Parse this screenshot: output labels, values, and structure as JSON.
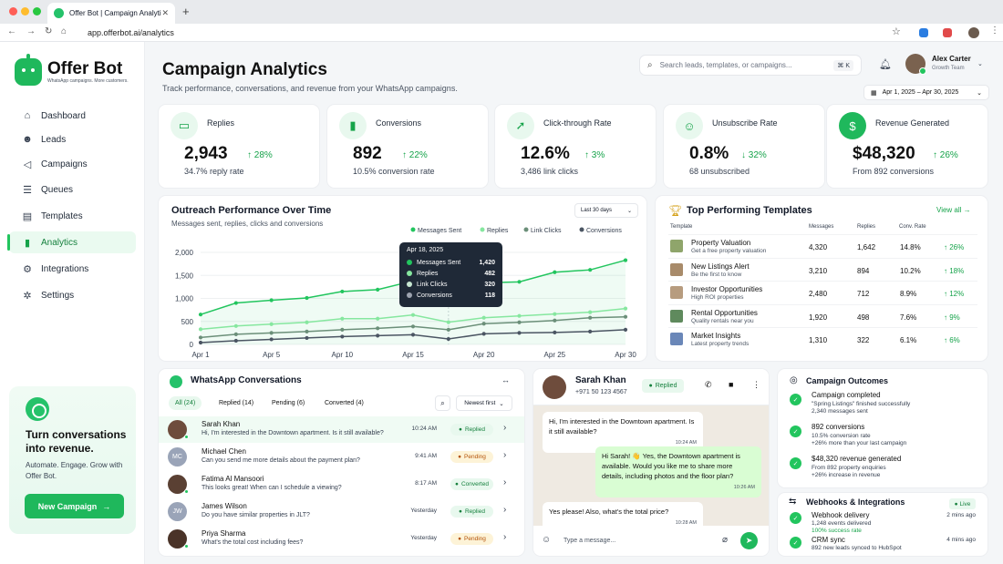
{
  "browser": {
    "tab_title": "Offer Bot | Campaign Analytics",
    "url": "app.offerbot.ai/analytics"
  },
  "brand": {
    "name": "Offer Bot",
    "tagline": "WhatsApp campaigns. More customers."
  },
  "sidebar": {
    "items": [
      {
        "label": "Dashboard",
        "icon": "dashboard-icon"
      },
      {
        "label": "Leads",
        "icon": "users-icon"
      },
      {
        "label": "Campaigns",
        "icon": "megaphone-icon"
      },
      {
        "label": "Queues",
        "icon": "database-icon"
      },
      {
        "label": "Templates",
        "icon": "document-icon"
      },
      {
        "label": "Analytics",
        "icon": "bar-chart-icon",
        "active": true
      },
      {
        "label": "Integrations",
        "icon": "puzzle-icon"
      },
      {
        "label": "Settings",
        "icon": "gear-icon"
      }
    ],
    "promo": {
      "title": "Turn conversations into revenue.",
      "text": "Automate. Engage. Grow with Offer Bot.",
      "button": "New Campaign"
    }
  },
  "header": {
    "title": "Campaign Analytics",
    "subtitle": "Track performance, conversations, and revenue from your WhatsApp campaigns.",
    "search_placeholder": "Search leads, templates, or campaigns...",
    "search_shortcut": "⌘ K",
    "user": {
      "name": "Alex Carter",
      "role": "Growth Team"
    },
    "date_range": "Apr 1, 2025 – Apr 30, 2025"
  },
  "kpis": [
    {
      "label": "Replies",
      "value": "2,943",
      "trend": "28%",
      "direction": "up",
      "sub": "34.7% reply rate",
      "icon": "chat-icon"
    },
    {
      "label": "Conversions",
      "value": "892",
      "trend": "22%",
      "direction": "up",
      "sub": "10.5% conversion rate",
      "icon": "bar-chart-icon"
    },
    {
      "label": "Click-through Rate",
      "value": "12.6%",
      "trend": "3%",
      "direction": "up",
      "sub": "3,486 link clicks",
      "icon": "cursor-icon"
    },
    {
      "label": "Unsubscribe Rate",
      "value": "0.8%",
      "trend": "32%",
      "direction": "down",
      "sub": "68 unsubscribed",
      "icon": "user-minus-icon"
    },
    {
      "label": "Revenue Generated",
      "value": "$48,320",
      "trend": "26%",
      "direction": "up",
      "sub": "From 892 conversions",
      "icon": "dollar-icon"
    }
  ],
  "performance": {
    "title": "Outreach Performance Over Time",
    "subtitle": "Messages sent, replies, clicks and conversions",
    "range": "Last 30 days",
    "tooltip": {
      "date": "Apr 18, 2025",
      "rows": [
        {
          "name": "Messages Sent",
          "value": "1,420"
        },
        {
          "name": "Replies",
          "value": "482"
        },
        {
          "name": "Link Clicks",
          "value": "320"
        },
        {
          "name": "Conversions",
          "value": "118"
        }
      ]
    }
  },
  "chart_data": {
    "type": "line",
    "x": [
      "Apr 1",
      "Apr 3",
      "Apr 5",
      "Apr 7",
      "Apr 10",
      "Apr 12",
      "Apr 15",
      "Apr 18",
      "Apr 20",
      "Apr 22",
      "Apr 25",
      "Apr 27",
      "Apr 30"
    ],
    "xticks": [
      "Apr 1",
      "Apr 5",
      "Apr 10",
      "Apr 15",
      "Apr 20",
      "Apr 25",
      "Apr 30"
    ],
    "series": [
      {
        "name": "Messages Sent",
        "color": "#22c55e",
        "values": [
          650,
          900,
          960,
          1010,
          1150,
          1190,
          1380,
          1420,
          1340,
          1360,
          1570,
          1620,
          1830
        ]
      },
      {
        "name": "Replies",
        "color": "#86e79f",
        "values": [
          330,
          400,
          440,
          480,
          560,
          560,
          640,
          482,
          580,
          620,
          660,
          700,
          780
        ]
      },
      {
        "name": "Link Clicks",
        "color": "#6b8f79",
        "values": [
          150,
          220,
          250,
          280,
          320,
          350,
          390,
          320,
          450,
          480,
          520,
          580,
          600
        ]
      },
      {
        "name": "Conversions",
        "color": "#4b5563",
        "values": [
          40,
          80,
          110,
          140,
          170,
          190,
          210,
          118,
          230,
          250,
          260,
          280,
          320
        ]
      }
    ],
    "ylim": [
      0,
      2000
    ],
    "yticks": [
      "0",
      "500",
      "1,000",
      "1,500",
      "2,000"
    ],
    "legend": "top-right",
    "grid": true
  },
  "templates": {
    "title": "Top Performing Templates",
    "view_all": "View all",
    "headers": [
      "Template",
      "Messages",
      "Replies",
      "Conv. Rate"
    ],
    "rows": [
      {
        "name": "Property Valuation",
        "desc": "Get a free property valuation",
        "messages": "4,320",
        "replies": "1,642",
        "rate": "14.8%",
        "trend": "26%"
      },
      {
        "name": "New Listings Alert",
        "desc": "Be the first to know",
        "messages": "3,210",
        "replies": "894",
        "rate": "10.2%",
        "trend": "18%"
      },
      {
        "name": "Investor Opportunities",
        "desc": "High ROI properties",
        "messages": "2,480",
        "replies": "712",
        "rate": "8.9%",
        "trend": "12%"
      },
      {
        "name": "Rental Opportunities",
        "desc": "Quality rentals near you",
        "messages": "1,920",
        "replies": "498",
        "rate": "7.6%",
        "trend": "9%"
      },
      {
        "name": "Market Insights",
        "desc": "Latest property trends",
        "messages": "1,310",
        "replies": "322",
        "rate": "6.1%",
        "trend": "6%"
      }
    ]
  },
  "conversations": {
    "title": "WhatsApp Conversations",
    "filters": [
      "All (24)",
      "Replied (14)",
      "Pending (6)",
      "Converted (4)"
    ],
    "sort": "Newest first",
    "items": [
      {
        "name": "Sarah Khan",
        "msg": "Hi, I'm interested in the Downtown apartment. Is it still available?",
        "time": "10:24 AM",
        "status": "Replied",
        "initials": "",
        "color": "#6e4c3c",
        "online": true
      },
      {
        "name": "Michael Chen",
        "msg": "Can you send me more details about the payment plan?",
        "time": "9:41 AM",
        "status": "Pending",
        "initials": "MC",
        "color": "#9aa4b8",
        "online": false
      },
      {
        "name": "Fatima Al Mansoori",
        "msg": "This looks great! When can I schedule a viewing?",
        "time": "8:17 AM",
        "status": "Converted",
        "initials": "",
        "color": "#5a4033",
        "online": true
      },
      {
        "name": "James Wilson",
        "msg": "Do you have similar properties in JLT?",
        "time": "Yesterday",
        "status": "Replied",
        "initials": "JW",
        "color": "#9aa4b8",
        "online": false
      },
      {
        "name": "Priya Sharma",
        "msg": "What's the total cost including fees?",
        "time": "Yesterday",
        "status": "Pending",
        "initials": "",
        "color": "#4a3328",
        "online": true
      }
    ]
  },
  "chat": {
    "name": "Sarah Khan",
    "phone": "+971 50 123 4567",
    "status": "Replied",
    "messages": [
      {
        "dir": "in",
        "text": "Hi, I'm interested in the Downtown apartment. Is it still available?",
        "time": "10:24 AM"
      },
      {
        "dir": "out",
        "text": "Hi Sarah! 👋 Yes, the Downtown apartment is available. Would you like me to share more details, including photos and the floor plan?",
        "time": "10:26 AM"
      },
      {
        "dir": "in",
        "text": "Yes please! Also, what's the total price?",
        "time": "10:28 AM"
      }
    ],
    "placeholder": "Type a message..."
  },
  "outcomes": {
    "title": "Campaign Outcomes",
    "items": [
      {
        "a": "Campaign completed",
        "b": "\"Spring Listings\" finished successfully",
        "c": "2,340 messages sent",
        "c_green": false
      },
      {
        "a": "892 conversions",
        "b": "10.5% conversion rate",
        "c": "+26% more than your last campaign",
        "c_green": true
      },
      {
        "a": "$48,320 revenue generated",
        "b": "From 892 property enquiries",
        "c": "+26% increase in revenue",
        "c_green": true
      }
    ]
  },
  "webhooks": {
    "title": "Webhooks & Integrations",
    "live": "Live",
    "items": [
      {
        "a": "Webhook delivery",
        "b": "1,248 events delivered",
        "c": "100% success rate",
        "time": "2 mins ago"
      },
      {
        "a": "CRM sync",
        "b": "892 new leads synced to HubSpot",
        "c": "",
        "time": "4 mins ago"
      }
    ]
  }
}
